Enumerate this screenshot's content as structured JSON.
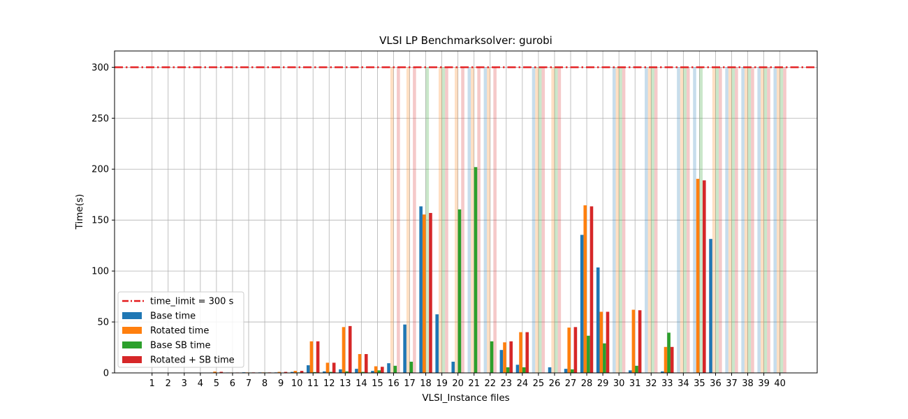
{
  "chart_data": {
    "type": "bar",
    "title": "VLSI LP Benchmarksolver: gurobi",
    "xlabel": "VLSI_Instance files",
    "ylabel": "Time(s)",
    "ylim": [
      0,
      316
    ],
    "yticks": [
      0,
      50,
      100,
      150,
      200,
      250,
      300
    ],
    "grid": true,
    "legend_position": "lower-left",
    "categories": [
      "1",
      "2",
      "3",
      "4",
      "5",
      "6",
      "7",
      "8",
      "9",
      "10",
      "11",
      "12",
      "13",
      "14",
      "15",
      "16",
      "17",
      "18",
      "19",
      "20",
      "21",
      "22",
      "23",
      "24",
      "25",
      "26",
      "27",
      "28",
      "29",
      "30",
      "31",
      "32",
      "33",
      "34",
      "35",
      "36",
      "37",
      "38",
      "39",
      "40"
    ],
    "reference_line": {
      "name": "time_limit = 300 s",
      "value": 300,
      "color": "#e31a1c",
      "style": "dashdot"
    },
    "series": [
      {
        "name": "Base time",
        "color": "#1f77b4",
        "values": [
          0.2,
          0.2,
          0.2,
          0.3,
          0.4,
          0.4,
          0.6,
          0.5,
          0.5,
          1.0,
          7.5,
          1.5,
          3.5,
          4.0,
          2.0,
          9.5,
          47.5,
          163.5,
          57.5,
          11.0,
          300,
          300,
          22.5,
          8.0,
          300,
          5.5,
          4.0,
          135.5,
          103.5,
          300,
          2.5,
          300,
          1.5,
          300,
          300,
          131.5,
          300,
          300,
          300,
          300
        ]
      },
      {
        "name": "Rotated time",
        "color": "#ff7f0e",
        "values": [
          0.2,
          0.2,
          0.3,
          0.3,
          1.3,
          0.4,
          0.5,
          0.5,
          1.0,
          2.0,
          31.0,
          10.0,
          45.0,
          18.5,
          6.5,
          300,
          300,
          155.5,
          300,
          300,
          300,
          300,
          30.0,
          40.0,
          300,
          300,
          44.5,
          164.5,
          60.0,
          300,
          62.0,
          300,
          25.5,
          300,
          190.5,
          300,
          300,
          300,
          300,
          300
        ]
      },
      {
        "name": "Base SB time",
        "color": "#2ca02c",
        "values": [
          0.1,
          0.1,
          0.1,
          0.2,
          0.3,
          0.3,
          0.4,
          0.4,
          0.3,
          0.5,
          0.8,
          1.0,
          1.5,
          1.0,
          2.5,
          7.0,
          11.0,
          300,
          300,
          160.5,
          202.0,
          31.0,
          5.5,
          5.5,
          300,
          300,
          3.5,
          36.5,
          29.0,
          300,
          7.0,
          300,
          39.5,
          300,
          300,
          300,
          300,
          300,
          300,
          300
        ]
      },
      {
        "name": "Rotated + SB time",
        "color": "#d62728",
        "values": [
          0.2,
          0.2,
          0.3,
          0.3,
          1.1,
          0.4,
          0.5,
          0.5,
          1.0,
          2.0,
          31.0,
          10.0,
          46.0,
          18.5,
          6.0,
          300,
          300,
          157.0,
          300,
          300,
          300,
          300,
          31.0,
          40.0,
          300,
          300,
          45.0,
          163.5,
          60.0,
          300,
          61.5,
          300,
          25.5,
          300,
          189.0,
          300,
          300,
          300,
          300,
          300
        ]
      }
    ]
  }
}
